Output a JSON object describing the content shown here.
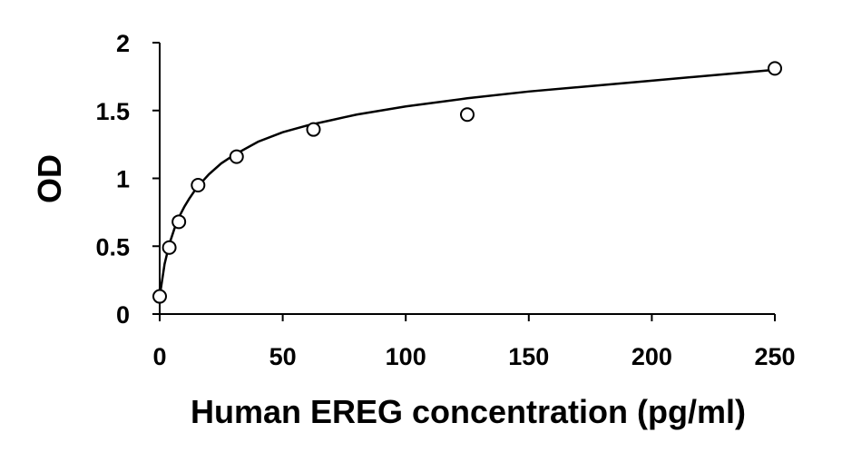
{
  "chart_data": {
    "type": "scatter",
    "title": "",
    "xlabel": "Human EREG concentration (pg/ml)",
    "ylabel": "OD",
    "xlim": [
      0,
      250
    ],
    "ylim": [
      0,
      2
    ],
    "xticks": [
      0,
      50,
      100,
      150,
      200,
      250
    ],
    "yticks": [
      0,
      0.5,
      1,
      1.5,
      2
    ],
    "xtick_labels": [
      "0",
      "50",
      "100",
      "150",
      "200",
      "250"
    ],
    "ytick_labels": [
      "0",
      "0.5",
      "1",
      "1.5",
      "2"
    ],
    "grid": false,
    "legend": "none",
    "marker": "open-circle",
    "trendline": "fitted curve",
    "series": [
      {
        "x": [
          0,
          3.9,
          7.8,
          15.6,
          31.25,
          62.5,
          125,
          250
        ],
        "y": [
          0.13,
          0.49,
          0.68,
          0.95,
          1.16,
          1.36,
          1.47,
          1.81
        ]
      }
    ],
    "fit_curve": {
      "x": [
        0,
        2,
        4,
        6,
        8,
        10,
        12,
        15,
        20,
        25,
        30,
        40,
        50,
        60,
        70,
        80,
        100,
        125,
        150,
        175,
        200,
        225,
        250
      ],
      "y": [
        0.13,
        0.37,
        0.52,
        0.63,
        0.72,
        0.79,
        0.85,
        0.93,
        1.03,
        1.11,
        1.17,
        1.27,
        1.34,
        1.39,
        1.43,
        1.47,
        1.53,
        1.59,
        1.64,
        1.68,
        1.72,
        1.76,
        1.8
      ]
    },
    "colors": {
      "axis": "#000000",
      "marker_stroke": "#000000",
      "marker_fill": "#ffffff",
      "curve": "#000000"
    }
  }
}
